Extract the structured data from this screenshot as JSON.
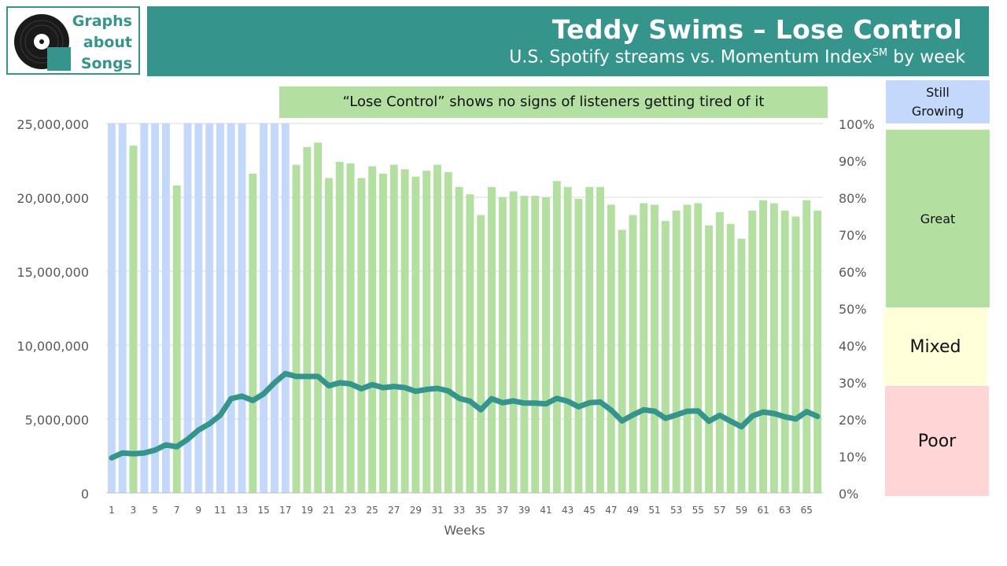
{
  "logo": {
    "text": "Graphs\nabout\nSongs"
  },
  "header": {
    "title": "Teddy Swims – Lose Control",
    "subtitle": "U.S. Spotify streams vs. Momentum Index",
    "subtitle_sup": "SM",
    "subtitle_tail": " by week"
  },
  "annotation": "“Lose Control” shows no signs of listeners getting tired of it",
  "legend_bands": {
    "still_growing": "Still\nGrowing",
    "great": "Great",
    "mixed": "Mixed",
    "poor": "Poor"
  },
  "colors": {
    "brand": "#35958d",
    "still_growing": "#c4d8fc",
    "great": "#b3e0a0",
    "mixed": "#ffffd9",
    "poor": "#ffd5d5",
    "line": "#35958d",
    "grid": "#d9d9d9"
  },
  "chart_data": {
    "type": "bar+line",
    "xlabel": "Weeks",
    "x_tick_labels": [
      "1",
      "3",
      "5",
      "7",
      "9",
      "11",
      "13",
      "15",
      "17",
      "19",
      "21",
      "23",
      "25",
      "27",
      "29",
      "31",
      "33",
      "35",
      "37",
      "39",
      "41",
      "43",
      "45",
      "47",
      "49",
      "51",
      "53",
      "55",
      "57",
      "59",
      "61",
      "63",
      "65"
    ],
    "y_left": {
      "ylim": [
        0,
        25000000
      ],
      "tick_labels": [
        "0",
        "5,000,000",
        "10,000,000",
        "15,000,000",
        "20,000,000",
        "25,000,000"
      ]
    },
    "y_right": {
      "ylim": [
        0,
        1
      ],
      "tick_labels": [
        "0%",
        "10%",
        "20%",
        "30%",
        "40%",
        "50%",
        "60%",
        "70%",
        "80%",
        "90%",
        "100%"
      ]
    },
    "weeks": [
      1,
      2,
      3,
      4,
      5,
      6,
      7,
      8,
      9,
      10,
      11,
      12,
      13,
      14,
      15,
      16,
      17,
      18,
      19,
      20,
      21,
      22,
      23,
      24,
      25,
      26,
      27,
      28,
      29,
      30,
      31,
      32,
      33,
      34,
      35,
      36,
      37,
      38,
      39,
      40,
      41,
      42,
      43,
      44,
      45,
      46,
      47,
      48,
      49,
      50,
      51,
      52,
      53,
      54,
      55,
      56,
      57,
      58,
      59,
      60,
      61,
      62,
      63,
      64,
      65,
      66
    ],
    "streams": [
      25000000,
      25000000,
      23500000,
      25000000,
      25000000,
      25000000,
      20800000,
      25000000,
      25000000,
      25000000,
      25000000,
      25000000,
      25000000,
      21600000,
      25000000,
      25000000,
      25000000,
      22200000,
      23400000,
      23700000,
      21300000,
      22400000,
      22300000,
      21300000,
      22100000,
      21600000,
      22200000,
      21900000,
      21400000,
      21800000,
      22200000,
      21700000,
      20700000,
      20200000,
      18800000,
      20700000,
      20000000,
      20400000,
      20100000,
      20100000,
      20000000,
      21100000,
      20700000,
      19900000,
      20700000,
      20700000,
      19500000,
      17800000,
      18800000,
      19600000,
      19500000,
      18400000,
      19100000,
      19500000,
      19600000,
      18100000,
      19000000,
      18200000,
      17200000,
      19100000,
      19800000,
      19600000,
      19100000,
      18700000,
      19800000,
      19100000
    ],
    "streams_clipped_at_axis_max": true,
    "bar_status": [
      "still_growing",
      "still_growing",
      "great",
      "still_growing",
      "still_growing",
      "still_growing",
      "great",
      "still_growing",
      "still_growing",
      "still_growing",
      "still_growing",
      "still_growing",
      "still_growing",
      "great",
      "still_growing",
      "still_growing",
      "still_growing",
      "great",
      "great",
      "great",
      "great",
      "great",
      "great",
      "great",
      "great",
      "great",
      "great",
      "great",
      "great",
      "great",
      "great",
      "great",
      "great",
      "great",
      "great",
      "great",
      "great",
      "great",
      "great",
      "great",
      "great",
      "great",
      "great",
      "great",
      "great",
      "great",
      "great",
      "great",
      "great",
      "great",
      "great",
      "great",
      "great",
      "great",
      "great",
      "great",
      "great",
      "great",
      "great",
      "great",
      "great",
      "great",
      "great",
      "great",
      "great",
      "great"
    ],
    "momentum_index": [
      0.095,
      0.108,
      0.106,
      0.108,
      0.116,
      0.13,
      0.125,
      0.145,
      0.17,
      0.187,
      0.21,
      0.255,
      0.262,
      0.25,
      0.268,
      0.298,
      0.323,
      0.315,
      0.315,
      0.315,
      0.29,
      0.298,
      0.295,
      0.282,
      0.293,
      0.285,
      0.288,
      0.285,
      0.275,
      0.28,
      0.283,
      0.276,
      0.256,
      0.248,
      0.225,
      0.255,
      0.244,
      0.249,
      0.243,
      0.243,
      0.241,
      0.256,
      0.248,
      0.233,
      0.244,
      0.246,
      0.224,
      0.195,
      0.211,
      0.225,
      0.221,
      0.202,
      0.211,
      0.221,
      0.222,
      0.194,
      0.21,
      0.194,
      0.179,
      0.208,
      0.219,
      0.215,
      0.206,
      0.2,
      0.22,
      0.207
    ],
    "series": [
      {
        "name": "",
        "kind": "bar",
        "axis": "left"
      },
      {
        "name": "",
        "kind": "line",
        "axis": "right"
      }
    ],
    "grid": true
  }
}
